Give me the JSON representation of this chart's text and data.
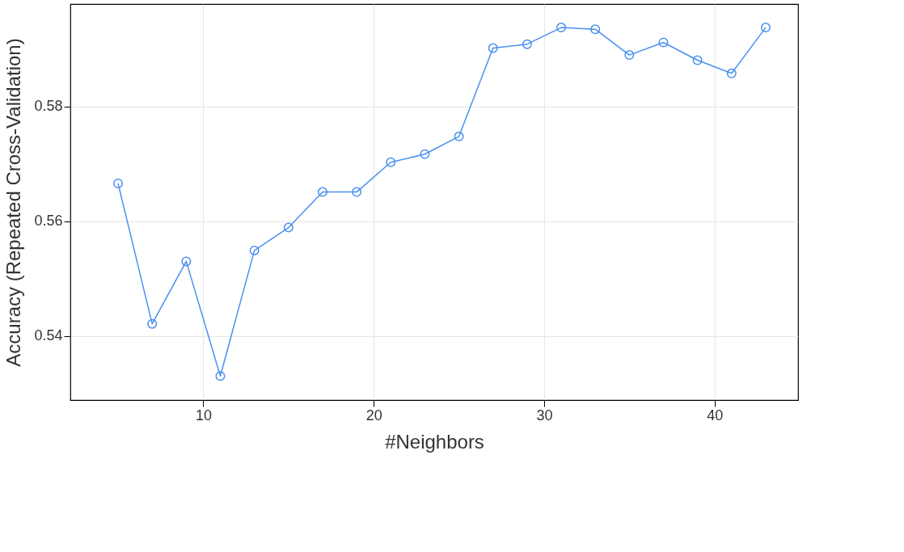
{
  "chart_data": {
    "type": "line",
    "xlabel": "#Neighbors",
    "ylabel": "Accuracy (Repeated Cross-Validation)",
    "x": [
      5,
      7,
      9,
      11,
      13,
      15,
      17,
      19,
      21,
      23,
      25,
      27,
      29,
      31,
      33,
      35,
      37,
      39,
      41,
      43
    ],
    "series": [
      {
        "color": "#4a90f0",
        "values": [
          0.5666,
          0.5421,
          0.553,
          0.533,
          0.5549,
          0.5589,
          0.5651,
          0.5651,
          0.5703,
          0.5717,
          0.5748,
          0.5902,
          0.5909,
          0.5938,
          0.5935,
          0.589,
          0.5912,
          0.5881,
          0.5858,
          0.5938
        ]
      }
    ],
    "xlim": [
      2.2,
      44.9
    ],
    "ylim": [
      0.5288,
      0.5979
    ],
    "xticks": [
      10,
      20,
      30,
      40
    ],
    "yticks": [
      0.54,
      0.56,
      0.58
    ],
    "grid": true,
    "marker": "circle",
    "line_style": "solid"
  }
}
